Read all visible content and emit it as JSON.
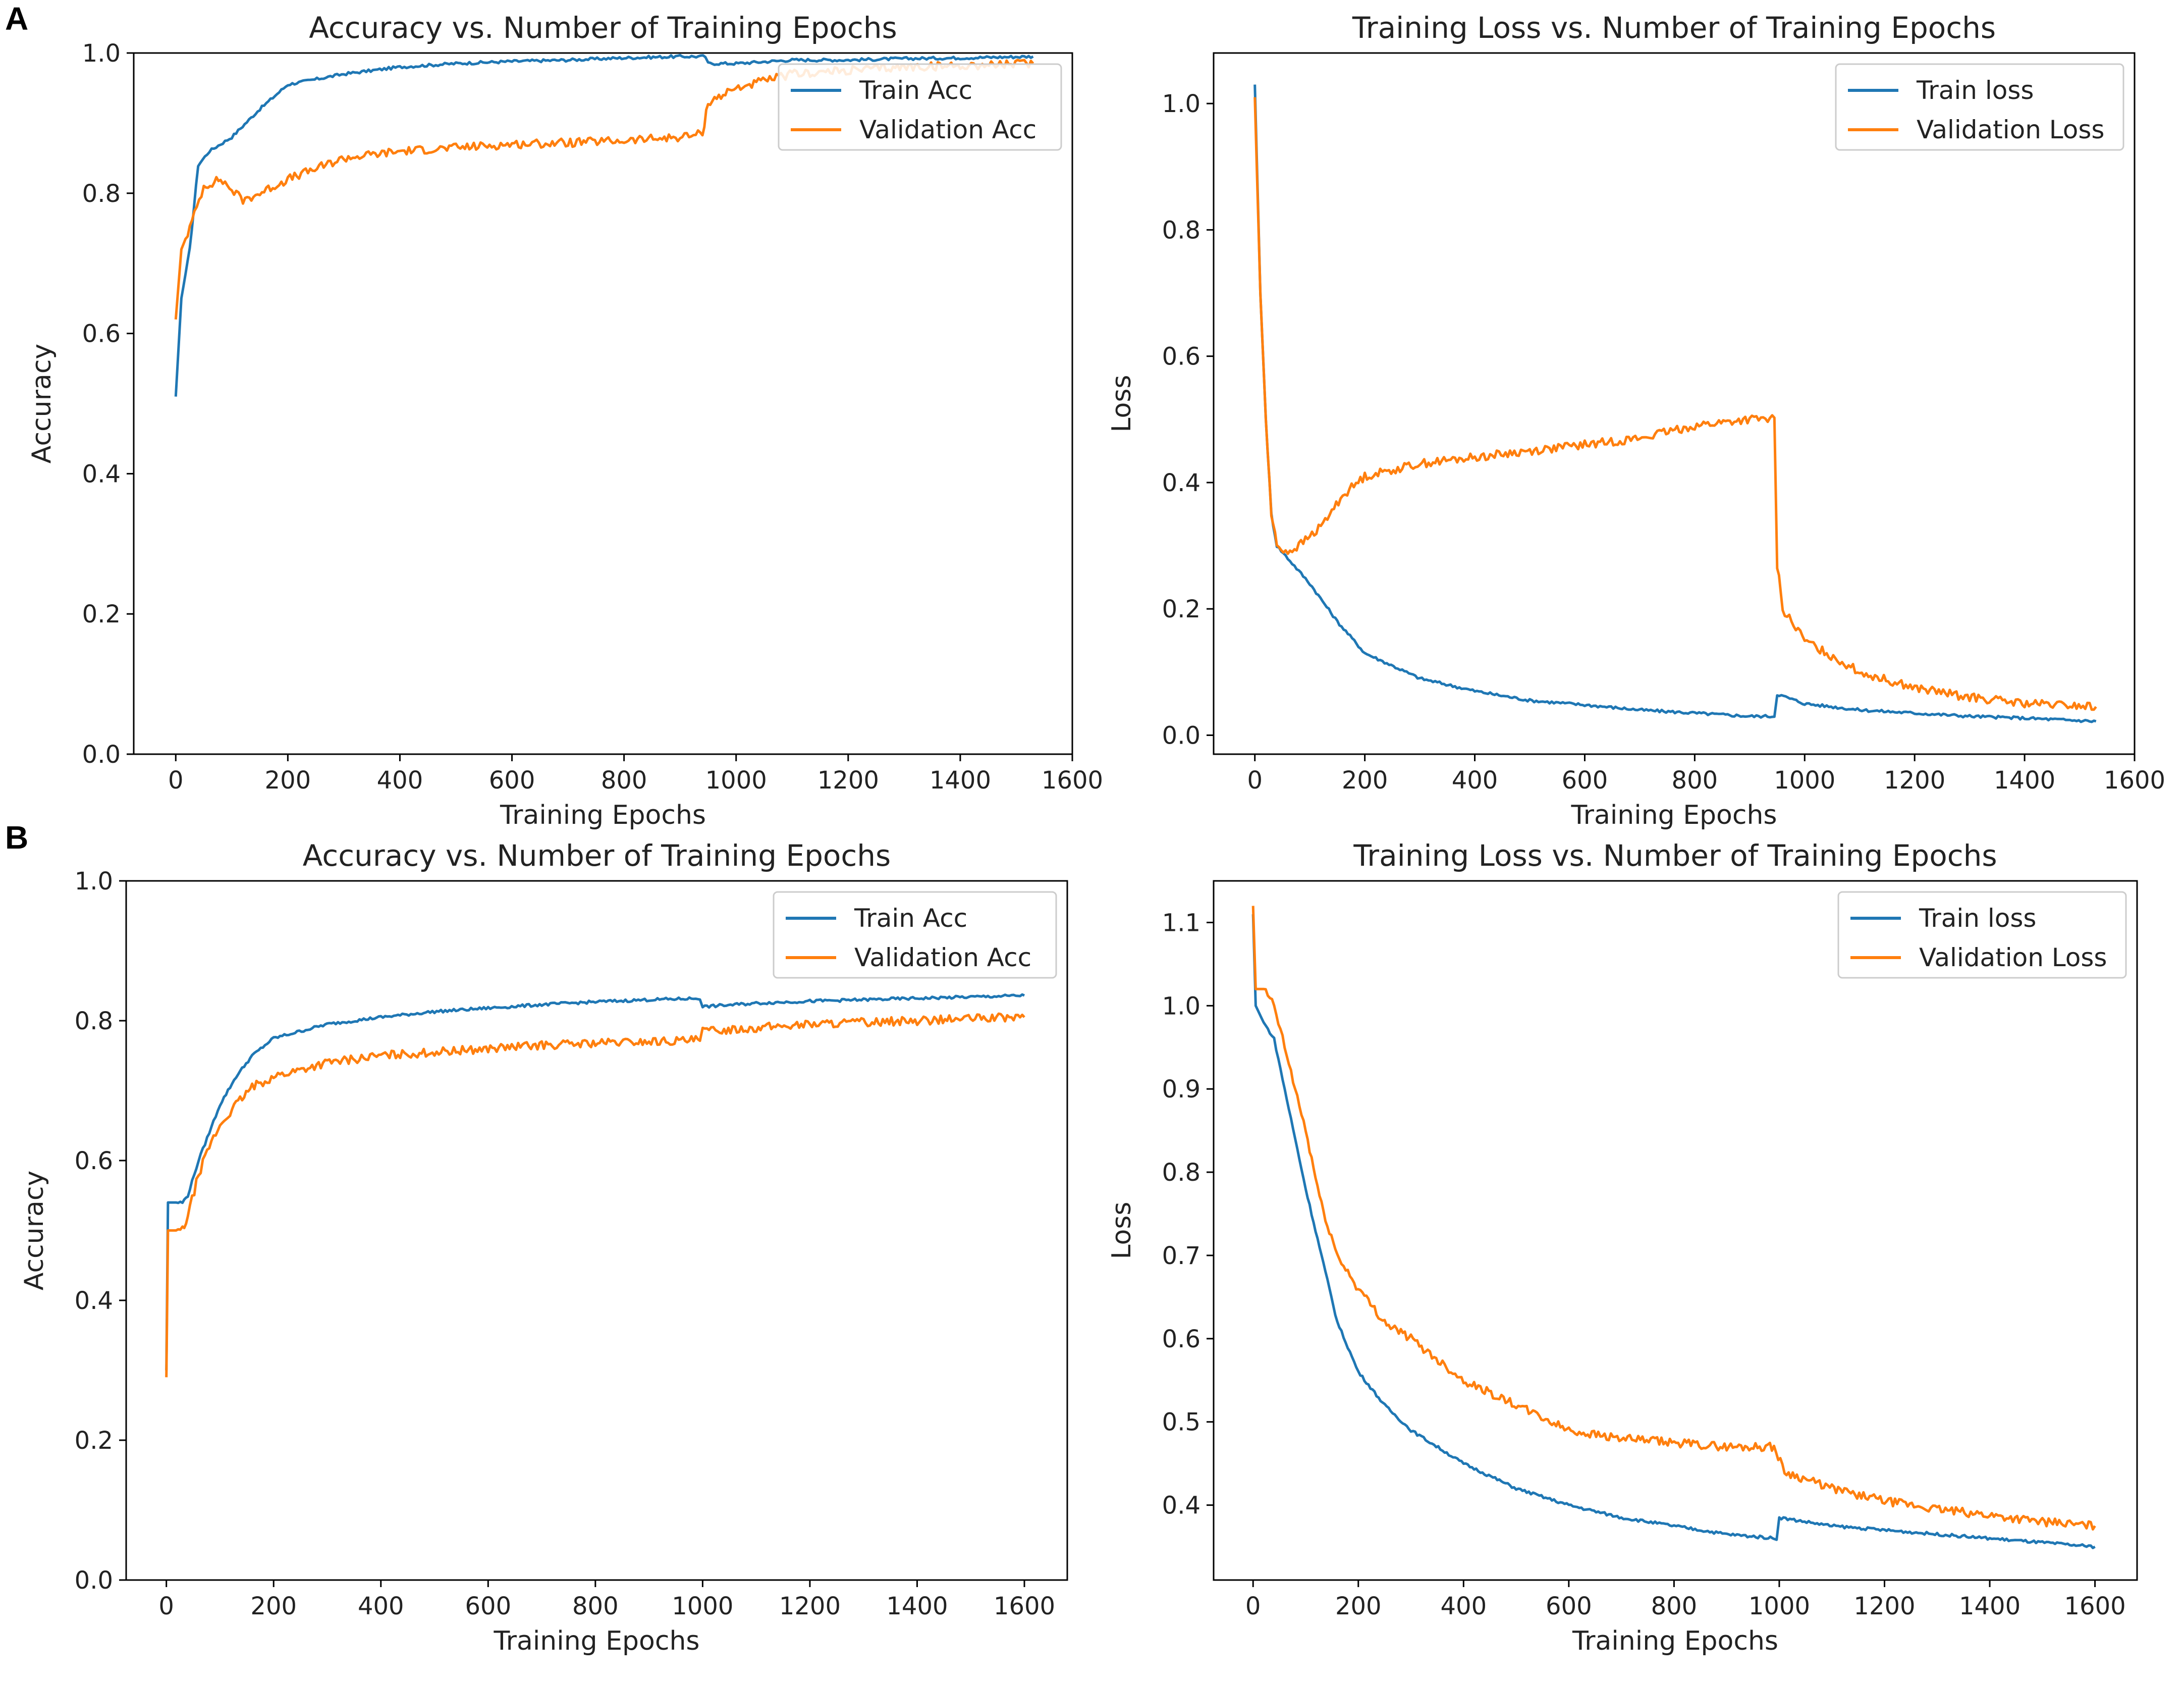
{
  "panels": [
    {
      "letter": "A"
    },
    {
      "letter": "B"
    }
  ],
  "chart_data": [
    {
      "type": "line",
      "panel": "A",
      "title": "Accuracy vs. Number of Training Epochs",
      "xlabel": "Training Epochs",
      "ylabel": "Accuracy",
      "xlim": [
        -75,
        1600
      ],
      "ylim": [
        0.0,
        1.0
      ],
      "xticks": [
        0,
        200,
        400,
        600,
        800,
        1000,
        1200,
        1400,
        1600
      ],
      "yticks": [
        0.0,
        0.2,
        0.4,
        0.6,
        0.8,
        1.0
      ],
      "xtick_labels": [
        "0",
        "200",
        "400",
        "600",
        "800",
        "1000",
        "1200",
        "1400",
        "1600"
      ],
      "ytick_labels": [
        "0.0",
        "0.2",
        "0.4",
        "0.6",
        "0.8",
        "1.0"
      ],
      "legend_position": "top-right",
      "series": [
        {
          "name": "Train Acc",
          "color": "#1f77b4",
          "x": [
            0,
            10,
            25,
            40,
            60,
            100,
            150,
            200,
            300,
            400,
            500,
            600,
            700,
            800,
            900,
            945,
            950,
            1000,
            1100,
            1200,
            1300,
            1400,
            1530
          ],
          "y": [
            0.51,
            0.65,
            0.72,
            0.84,
            0.86,
            0.88,
            0.92,
            0.955,
            0.97,
            0.98,
            0.985,
            0.988,
            0.99,
            0.993,
            0.995,
            0.995,
            0.985,
            0.985,
            0.99,
            0.99,
            0.992,
            0.993,
            0.995
          ]
        },
        {
          "name": "Validation Acc",
          "color": "#ff7f0e",
          "x": [
            0,
            10,
            25,
            50,
            80,
            120,
            150,
            200,
            300,
            400,
            500,
            600,
            700,
            800,
            900,
            940,
            950,
            1000,
            1100,
            1200,
            1300,
            1400,
            1530
          ],
          "y": [
            0.62,
            0.72,
            0.75,
            0.81,
            0.82,
            0.79,
            0.8,
            0.82,
            0.85,
            0.86,
            0.865,
            0.87,
            0.872,
            0.875,
            0.88,
            0.885,
            0.93,
            0.95,
            0.97,
            0.975,
            0.98,
            0.982,
            0.985
          ]
        }
      ]
    },
    {
      "type": "line",
      "panel": "A",
      "title": "Training Loss vs. Number of Training Epochs",
      "xlabel": "Training Epochs",
      "ylabel": "Loss",
      "xlim": [
        -75,
        1600
      ],
      "ylim": [
        -0.03,
        1.08
      ],
      "xticks": [
        0,
        200,
        400,
        600,
        800,
        1000,
        1200,
        1400,
        1600
      ],
      "yticks": [
        0.0,
        0.2,
        0.4,
        0.6,
        0.8,
        1.0
      ],
      "xtick_labels": [
        "0",
        "200",
        "400",
        "600",
        "800",
        "1000",
        "1200",
        "1400",
        "1600"
      ],
      "ytick_labels": [
        "0.0",
        "0.2",
        "0.4",
        "0.6",
        "0.8",
        "1.0"
      ],
      "legend_position": "top-right",
      "series": [
        {
          "name": "Train loss",
          "color": "#1f77b4",
          "x": [
            0,
            10,
            20,
            30,
            40,
            60,
            100,
            150,
            200,
            300,
            400,
            500,
            600,
            700,
            800,
            900,
            945,
            950,
            1000,
            1100,
            1200,
            1300,
            1400,
            1530
          ],
          "y": [
            1.03,
            0.7,
            0.5,
            0.35,
            0.3,
            0.28,
            0.24,
            0.18,
            0.13,
            0.09,
            0.07,
            0.055,
            0.048,
            0.04,
            0.035,
            0.03,
            0.03,
            0.065,
            0.05,
            0.04,
            0.035,
            0.03,
            0.027,
            0.022
          ]
        },
        {
          "name": "Validation Loss",
          "color": "#ff7f0e",
          "x": [
            0,
            10,
            20,
            30,
            40,
            60,
            80,
            120,
            160,
            200,
            300,
            400,
            500,
            600,
            700,
            800,
            900,
            945,
            950,
            960,
            1000,
            1100,
            1200,
            1300,
            1400,
            1530
          ],
          "y": [
            1.01,
            0.7,
            0.5,
            0.35,
            0.3,
            0.29,
            0.3,
            0.33,
            0.38,
            0.41,
            0.43,
            0.44,
            0.45,
            0.46,
            0.47,
            0.49,
            0.5,
            0.5,
            0.27,
            0.2,
            0.15,
            0.1,
            0.075,
            0.06,
            0.05,
            0.045
          ]
        }
      ]
    },
    {
      "type": "line",
      "panel": "B",
      "title": "Accuracy vs. Number of Training Epochs",
      "xlabel": "Training Epochs",
      "ylabel": "Accuracy",
      "xlim": [
        -75,
        1680
      ],
      "ylim": [
        0.0,
        1.0
      ],
      "xticks": [
        0,
        200,
        400,
        600,
        800,
        1000,
        1200,
        1400,
        1600
      ],
      "yticks": [
        0.0,
        0.2,
        0.4,
        0.6,
        0.8,
        1.0
      ],
      "xtick_labels": [
        "0",
        "200",
        "400",
        "600",
        "800",
        "1000",
        "1200",
        "1400",
        "1600"
      ],
      "ytick_labels": [
        "0.0",
        "0.2",
        "0.4",
        "0.6",
        "0.8",
        "1.0"
      ],
      "legend_position": "top-right",
      "series": [
        {
          "name": "Train Acc",
          "color": "#1f77b4",
          "x": [
            0,
            3,
            10,
            30,
            40,
            60,
            80,
            100,
            130,
            160,
            200,
            300,
            400,
            500,
            600,
            700,
            800,
            900,
            995,
            1000,
            1100,
            1200,
            1300,
            1400,
            1500,
            1600
          ],
          "y": [
            0.3,
            0.54,
            0.54,
            0.54,
            0.55,
            0.6,
            0.64,
            0.68,
            0.72,
            0.75,
            0.775,
            0.795,
            0.805,
            0.813,
            0.818,
            0.823,
            0.827,
            0.83,
            0.832,
            0.82,
            0.825,
            0.828,
            0.83,
            0.832,
            0.834,
            0.836
          ]
        },
        {
          "name": "Validation Acc",
          "color": "#ff7f0e",
          "x": [
            0,
            3,
            10,
            30,
            40,
            60,
            80,
            100,
            130,
            160,
            200,
            300,
            400,
            500,
            600,
            700,
            800,
            900,
            995,
            1000,
            1100,
            1200,
            1300,
            1400,
            1500,
            1600
          ],
          "y": [
            0.29,
            0.5,
            0.5,
            0.5,
            0.52,
            0.58,
            0.62,
            0.65,
            0.68,
            0.705,
            0.72,
            0.74,
            0.75,
            0.755,
            0.76,
            0.765,
            0.768,
            0.77,
            0.772,
            0.785,
            0.79,
            0.795,
            0.798,
            0.8,
            0.803,
            0.805
          ]
        }
      ]
    },
    {
      "type": "line",
      "panel": "B",
      "title": "Training Loss vs. Number of Training Epochs",
      "xlabel": "Training Epochs",
      "ylabel": "Loss",
      "xlim": [
        -75,
        1680
      ],
      "ylim": [
        0.31,
        1.15
      ],
      "xticks": [
        0,
        200,
        400,
        600,
        800,
        1000,
        1200,
        1400,
        1600
      ],
      "yticks": [
        0.4,
        0.5,
        0.6,
        0.7,
        0.8,
        0.9,
        1.0,
        1.1
      ],
      "xtick_labels": [
        "0",
        "200",
        "400",
        "600",
        "800",
        "1000",
        "1200",
        "1400",
        "1600"
      ],
      "ytick_labels": [
        "0.4",
        "0.5",
        "0.6",
        "0.7",
        "0.8",
        "0.9",
        "1.0",
        "1.1"
      ],
      "legend_position": "top-right",
      "series": [
        {
          "name": "Train loss",
          "color": "#1f77b4",
          "x": [
            0,
            5,
            20,
            40,
            60,
            80,
            100,
            130,
            160,
            200,
            250,
            300,
            400,
            500,
            600,
            700,
            800,
            900,
            995,
            1000,
            1100,
            1200,
            1300,
            1400,
            1500,
            1600
          ],
          "y": [
            1.11,
            1.0,
            0.98,
            0.96,
            0.9,
            0.84,
            0.78,
            0.7,
            0.62,
            0.56,
            0.52,
            0.49,
            0.45,
            0.42,
            0.4,
            0.385,
            0.375,
            0.365,
            0.36,
            0.385,
            0.375,
            0.37,
            0.365,
            0.36,
            0.355,
            0.35
          ]
        },
        {
          "name": "Validation Loss",
          "color": "#ff7f0e",
          "x": [
            0,
            5,
            20,
            40,
            60,
            80,
            100,
            130,
            160,
            200,
            250,
            300,
            400,
            500,
            600,
            700,
            800,
            900,
            990,
            1010,
            1100,
            1200,
            1300,
            1400,
            1500,
            1600
          ],
          "y": [
            1.12,
            1.02,
            1.02,
            1.0,
            0.95,
            0.9,
            0.85,
            0.76,
            0.7,
            0.66,
            0.62,
            0.6,
            0.55,
            0.52,
            0.49,
            0.48,
            0.475,
            0.47,
            0.47,
            0.44,
            0.42,
            0.405,
            0.395,
            0.388,
            0.38,
            0.375
          ]
        }
      ]
    }
  ]
}
